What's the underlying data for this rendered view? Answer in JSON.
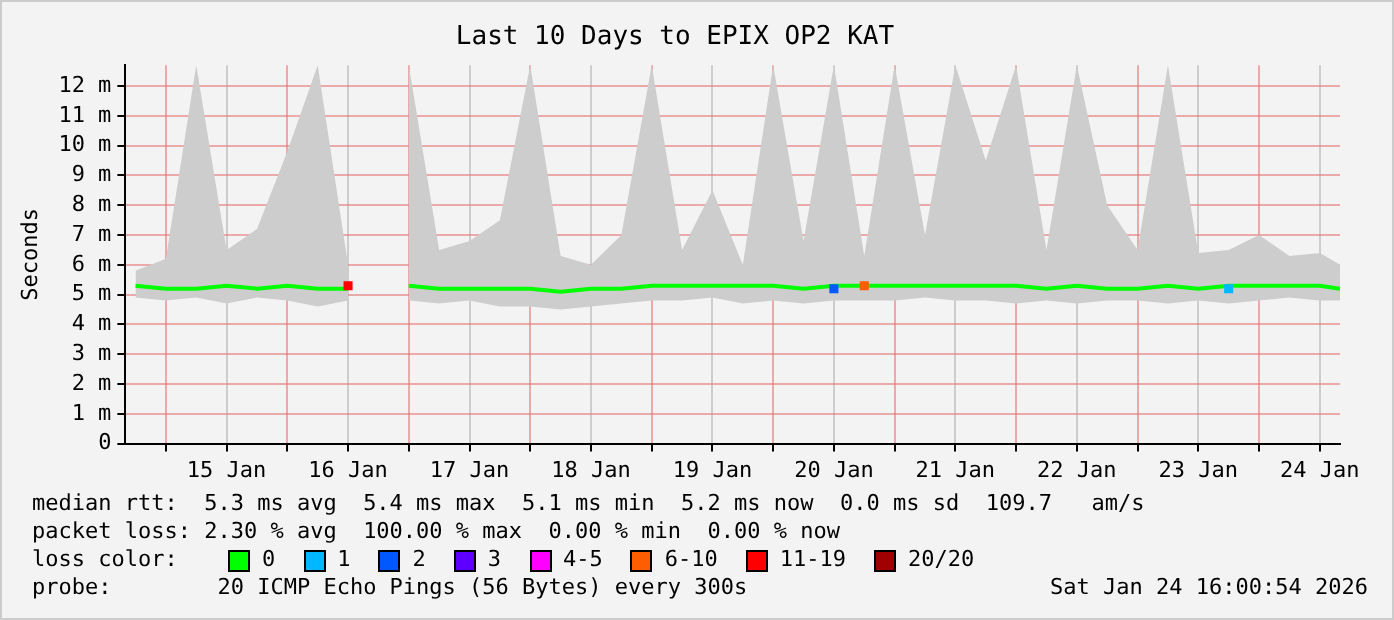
{
  "chart_data": {
    "type": "line",
    "title": "Last 10 Days to EPIX OP2 KAT",
    "ylabel": "Seconds",
    "legend_title": "loss color:",
    "legend": "bottom",
    "grid": true,
    "marker": "none",
    "line_style": "solid",
    "xlim": [
      "2026-01-14T16:00",
      "2026-01-24T16:00"
    ],
    "xticks": [
      {
        "value": "2026-01-15T00:00",
        "label": null
      },
      {
        "value": "2026-01-15T12:00",
        "label": "15 Jan"
      },
      {
        "value": "2026-01-16T00:00",
        "label": null
      },
      {
        "value": "2026-01-16T12:00",
        "label": "16 Jan"
      },
      {
        "value": "2026-01-17T00:00",
        "label": null
      },
      {
        "value": "2026-01-17T12:00",
        "label": "17 Jan"
      },
      {
        "value": "2026-01-18T00:00",
        "label": null
      },
      {
        "value": "2026-01-18T12:00",
        "label": "18 Jan"
      },
      {
        "value": "2026-01-19T00:00",
        "label": null
      },
      {
        "value": "2026-01-19T12:00",
        "label": "19 Jan"
      },
      {
        "value": "2026-01-20T00:00",
        "label": null
      },
      {
        "value": "2026-01-20T12:00",
        "label": "20 Jan"
      },
      {
        "value": "2026-01-21T00:00",
        "label": null
      },
      {
        "value": "2026-01-21T12:00",
        "label": "21 Jan"
      },
      {
        "value": "2026-01-22T00:00",
        "label": null
      },
      {
        "value": "2026-01-22T12:00",
        "label": "22 Jan"
      },
      {
        "value": "2026-01-23T00:00",
        "label": null
      },
      {
        "value": "2026-01-23T12:00",
        "label": "23 Jan"
      },
      {
        "value": "2026-01-24T00:00",
        "label": null
      },
      {
        "value": "2026-01-24T12:00",
        "label": "24 Jan"
      }
    ],
    "ylim": [
      0,
      12.7
    ],
    "yticks": [
      0,
      {
        "value": 1,
        "label": "1 m"
      },
      {
        "value": 2,
        "label": "2 m"
      },
      {
        "value": 3,
        "label": "3 m"
      },
      {
        "value": 4,
        "label": "4 m"
      },
      {
        "value": 5,
        "label": "5 m"
      },
      {
        "value": 6,
        "label": "6 m"
      },
      {
        "value": 7,
        "label": "7 m"
      },
      {
        "value": 8,
        "label": "8 m"
      },
      {
        "value": 9,
        "label": "9 m"
      },
      {
        "value": 10,
        "label": "10 m"
      },
      {
        "value": 11,
        "label": "11 m"
      },
      {
        "value": 12,
        "label": "12 m"
      }
    ],
    "x": [
      "2026-01-14T18:00",
      "2026-01-15T00:00",
      "2026-01-15T06:00",
      "2026-01-15T12:00",
      "2026-01-15T18:00",
      "2026-01-16T00:00",
      "2026-01-16T06:00",
      "2026-01-16T12:00",
      "2026-01-16T18:00",
      "2026-01-17T00:00",
      "2026-01-17T06:00",
      "2026-01-17T12:00",
      "2026-01-17T18:00",
      "2026-01-18T00:00",
      "2026-01-18T06:00",
      "2026-01-18T12:00",
      "2026-01-18T18:00",
      "2026-01-19T00:00",
      "2026-01-19T06:00",
      "2026-01-19T12:00",
      "2026-01-19T18:00",
      "2026-01-20T00:00",
      "2026-01-20T06:00",
      "2026-01-20T12:00",
      "2026-01-20T18:00",
      "2026-01-21T00:00",
      "2026-01-21T06:00",
      "2026-01-21T12:00",
      "2026-01-21T18:00",
      "2026-01-22T00:00",
      "2026-01-22T06:00",
      "2026-01-22T12:00",
      "2026-01-22T18:00",
      "2026-01-23T00:00",
      "2026-01-23T06:00",
      "2026-01-23T12:00",
      "2026-01-23T18:00",
      "2026-01-24T00:00",
      "2026-01-24T06:00",
      "2026-01-24T12:00",
      "2026-01-24T16:00"
    ],
    "series": [
      {
        "name": "0",
        "color": "#00ff00",
        "values": [
          5.3,
          5.2,
          5.2,
          5.3,
          5.2,
          5.3,
          5.2,
          5.2,
          null,
          5.3,
          5.2,
          5.2,
          5.2,
          5.2,
          5.1,
          5.2,
          5.2,
          5.3,
          5.3,
          5.3,
          5.3,
          5.3,
          5.2,
          5.3,
          5.3,
          5.3,
          5.3,
          5.3,
          5.3,
          5.3,
          5.2,
          5.3,
          5.2,
          5.2,
          5.3,
          5.2,
          5.3,
          5.3,
          5.3,
          5.3,
          5.2
        ],
        "lower": [
          4.9,
          4.8,
          4.9,
          4.7,
          4.9,
          4.8,
          4.6,
          4.8,
          null,
          4.8,
          4.7,
          4.8,
          4.6,
          4.6,
          4.5,
          4.6,
          4.7,
          4.8,
          4.8,
          4.9,
          4.7,
          4.8,
          4.7,
          4.8,
          4.8,
          4.8,
          4.9,
          4.8,
          4.8,
          4.7,
          4.8,
          4.7,
          4.8,
          4.8,
          4.7,
          4.8,
          4.7,
          4.8,
          4.9,
          4.8,
          4.8
        ],
        "upper": [
          5.8,
          6.2,
          12.7,
          6.5,
          7.2,
          9.8,
          12.7,
          6.0,
          null,
          12.7,
          6.5,
          6.8,
          7.5,
          12.7,
          6.3,
          6.0,
          7.0,
          12.7,
          6.5,
          8.5,
          6.0,
          12.7,
          6.8,
          12.7,
          6.3,
          12.7,
          7.0,
          12.7,
          9.5,
          12.7,
          6.5,
          12.7,
          8.0,
          6.5,
          12.7,
          6.4,
          6.5,
          7.0,
          6.3,
          6.4,
          6.0
        ]
      },
      {
        "name": "1",
        "color": "#00b8ff",
        "type": "scatter",
        "marker": "square",
        "values": [
          null,
          null,
          null,
          null,
          null,
          null,
          null,
          null,
          null,
          null,
          null,
          null,
          null,
          null,
          null,
          null,
          null,
          null,
          null,
          null,
          null,
          null,
          null,
          null,
          null,
          null,
          null,
          null,
          null,
          null,
          null,
          null,
          null,
          null,
          null,
          null,
          5.2,
          null,
          null,
          null,
          null
        ]
      },
      {
        "name": "2",
        "color": "#0059ff",
        "type": "scatter",
        "marker": "square",
        "values": [
          null,
          null,
          null,
          null,
          null,
          null,
          null,
          null,
          null,
          null,
          null,
          null,
          null,
          null,
          null,
          null,
          null,
          null,
          null,
          null,
          null,
          null,
          null,
          5.2,
          null,
          null,
          null,
          null,
          null,
          null,
          null,
          null,
          null,
          null,
          null,
          null,
          null,
          null,
          null,
          null,
          null
        ]
      },
      {
        "name": "3",
        "color": "#5e00ff",
        "type": "scatter",
        "marker": "square",
        "values": [
          null,
          null,
          null,
          null,
          null,
          null,
          null,
          null,
          null,
          null,
          null,
          null,
          null,
          null,
          null,
          null,
          null,
          null,
          null,
          null,
          null,
          null,
          null,
          null,
          null,
          null,
          null,
          null,
          null,
          null,
          null,
          null,
          null,
          null,
          null,
          null,
          null,
          null,
          null,
          null,
          null
        ]
      },
      {
        "name": "4-5",
        "color": "#ff00fe",
        "type": "scatter",
        "marker": "square",
        "values": [
          null,
          null,
          null,
          null,
          null,
          null,
          null,
          null,
          null,
          null,
          null,
          null,
          null,
          null,
          null,
          null,
          null,
          null,
          null,
          null,
          null,
          null,
          null,
          null,
          null,
          null,
          null,
          null,
          null,
          null,
          null,
          null,
          null,
          null,
          null,
          null,
          null,
          null,
          null,
          null,
          null
        ]
      },
      {
        "name": "6-10",
        "color": "#ff5e00",
        "type": "scatter",
        "marker": "square",
        "values": [
          null,
          null,
          null,
          null,
          null,
          null,
          null,
          null,
          null,
          null,
          null,
          null,
          null,
          null,
          null,
          null,
          null,
          null,
          null,
          null,
          null,
          null,
          null,
          null,
          5.3,
          null,
          null,
          null,
          null,
          null,
          null,
          null,
          null,
          null,
          null,
          null,
          null,
          null,
          null,
          null,
          null
        ]
      },
      {
        "name": "11-19",
        "color": "#ff0000",
        "type": "scatter",
        "marker": "square",
        "values": [
          null,
          null,
          null,
          null,
          null,
          null,
          null,
          5.3,
          null,
          null,
          null,
          null,
          null,
          null,
          null,
          null,
          null,
          null,
          null,
          null,
          null,
          null,
          null,
          null,
          null,
          null,
          null,
          null,
          null,
          null,
          null,
          null,
          null,
          null,
          null,
          null,
          null,
          null,
          null,
          null,
          null
        ]
      },
      {
        "name": "20/20",
        "color": "#a10000",
        "type": "scatter",
        "marker": "square",
        "values": [
          null,
          null,
          null,
          null,
          null,
          null,
          null,
          null,
          null,
          null,
          null,
          null,
          null,
          null,
          null,
          null,
          null,
          null,
          null,
          null,
          null,
          null,
          null,
          null,
          null,
          null,
          null,
          null,
          null,
          null,
          null,
          null,
          null,
          null,
          null,
          null,
          null,
          null,
          null,
          null,
          null
        ]
      }
    ],
    "annotations": [
      "median rtt:  5.3 ms avg  5.4 ms max  5.1 ms min  5.2 ms now  0.0 ms sd  109.7   am/s",
      "packet loss: 2.30 % avg  100.00 % max  0.00 % min  0.00 % now",
      "probe:        20 ICMP Echo Pings (56 Bytes) every 300s",
      "Sat Jan 24 16:00:54 2026"
    ]
  }
}
